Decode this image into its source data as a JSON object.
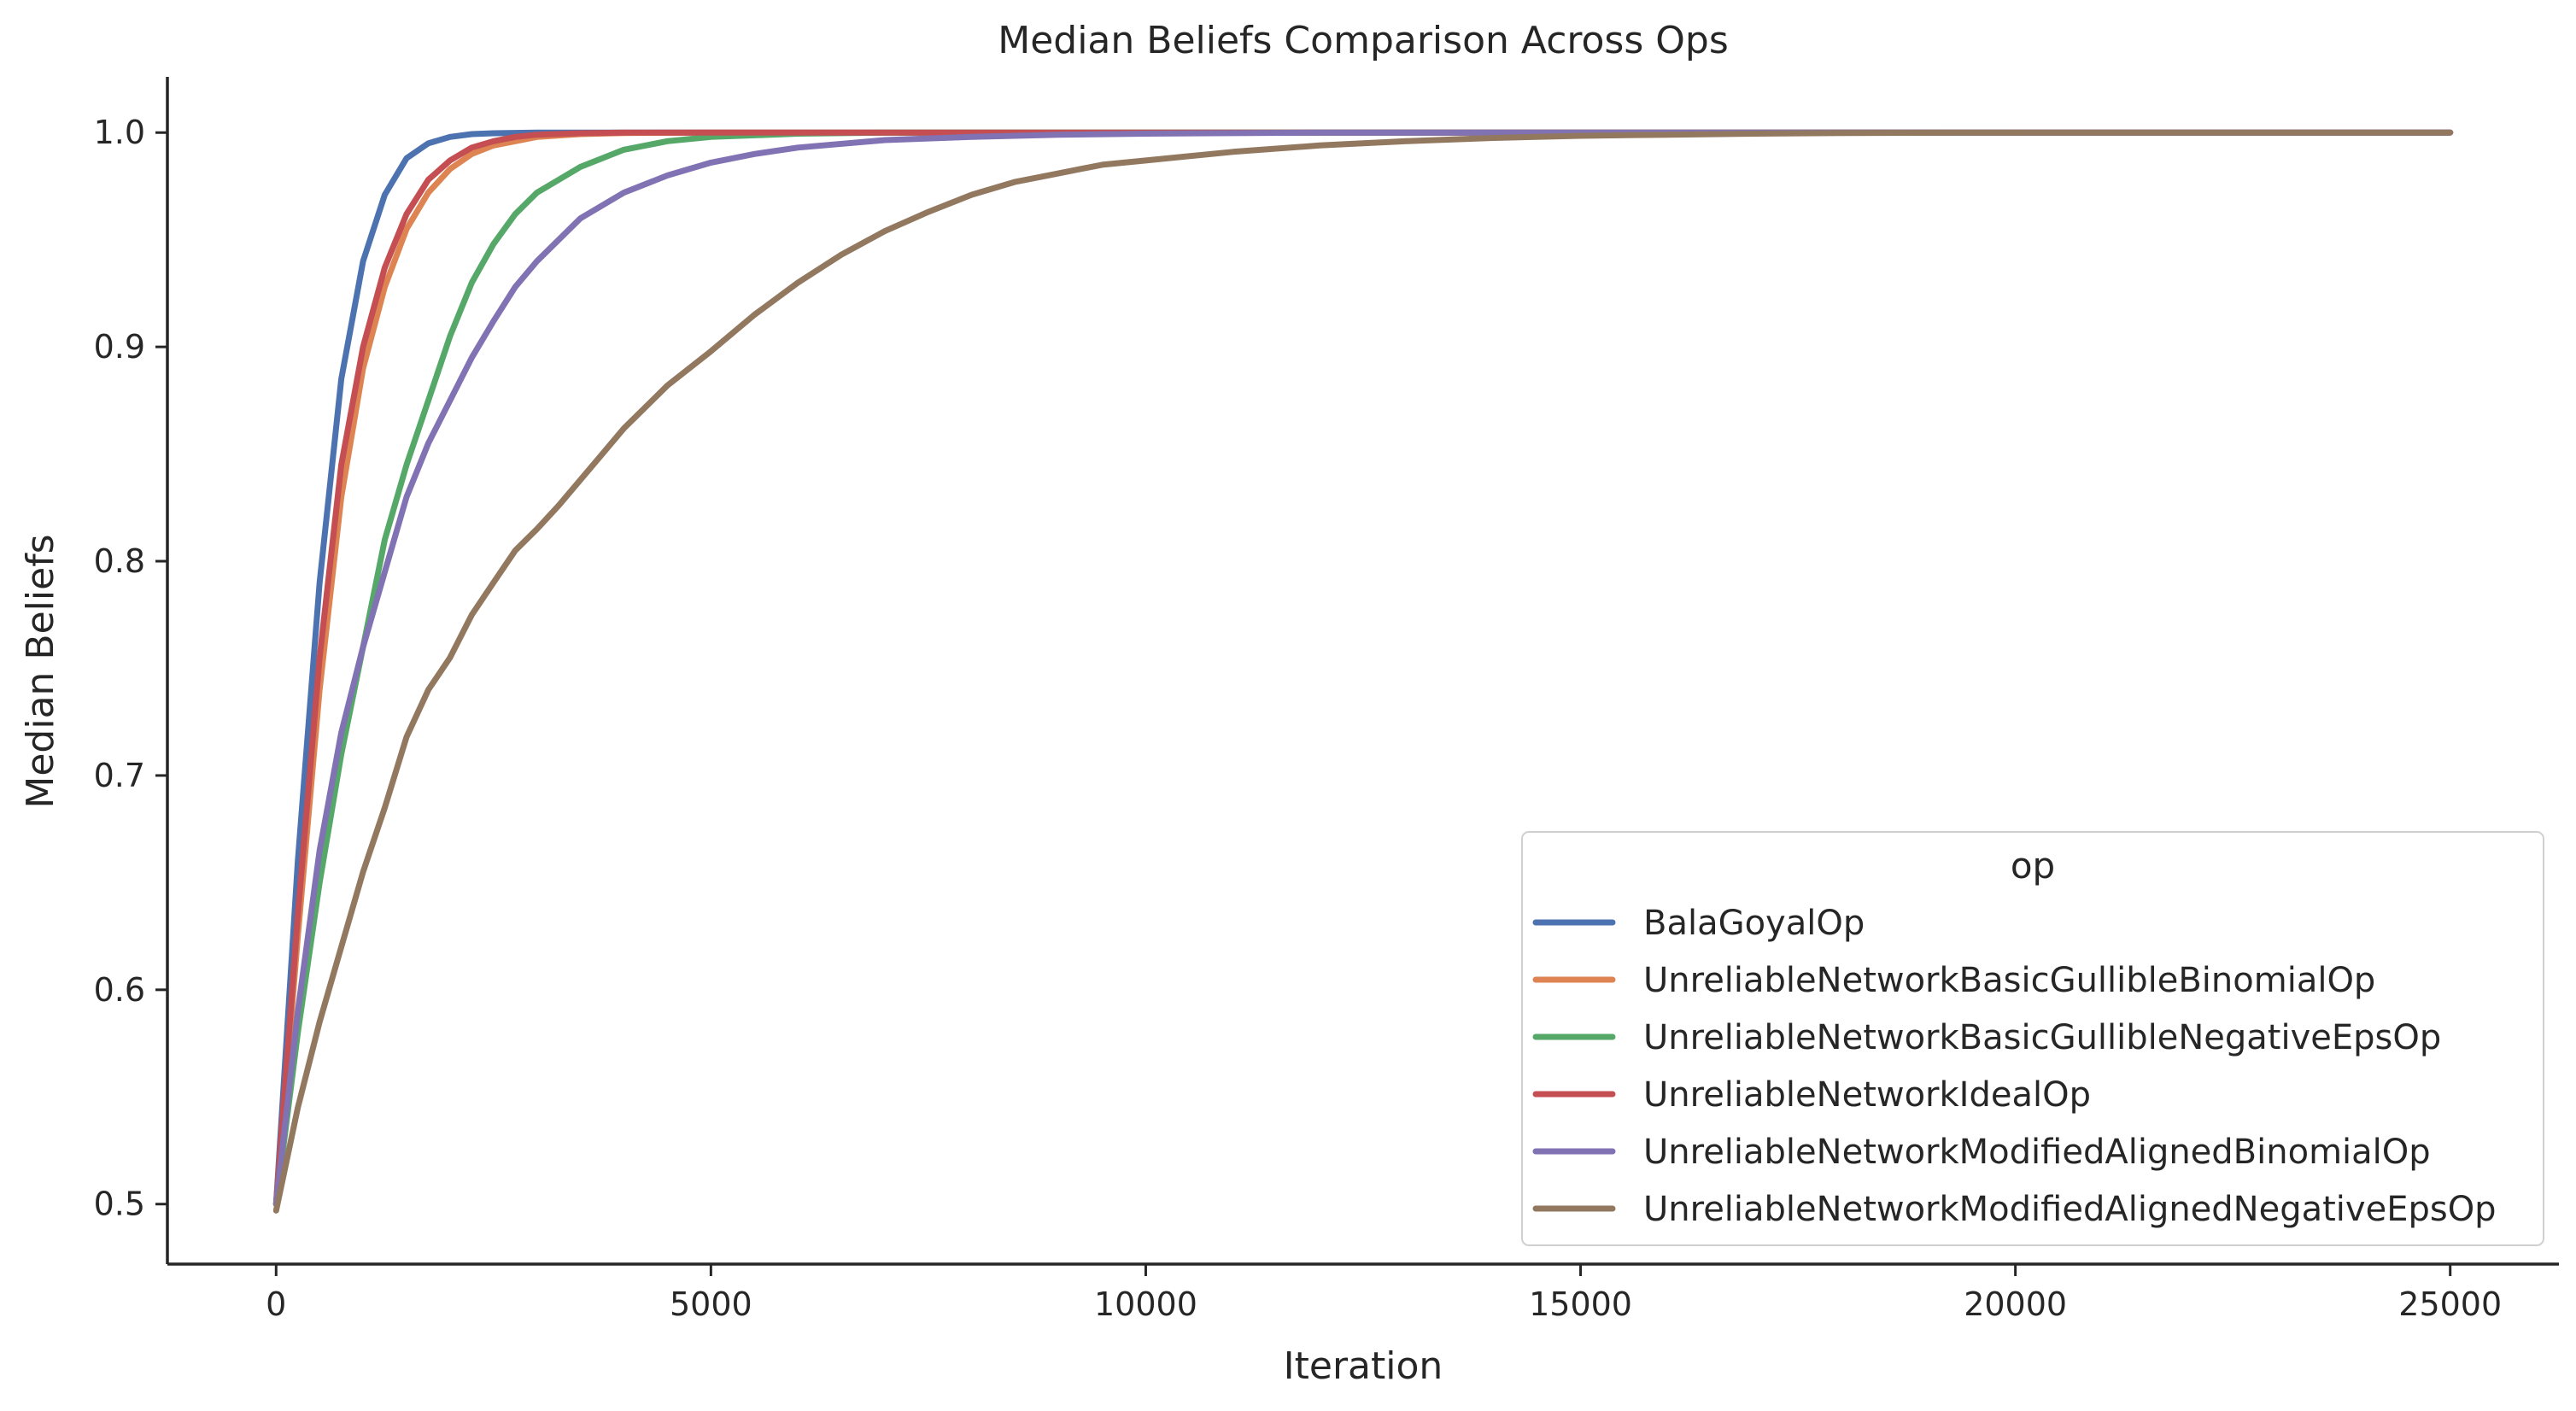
{
  "chart_data": {
    "type": "line",
    "title": "Median Beliefs Comparison Across Ops",
    "xlabel": "Iteration",
    "ylabel": "Median Beliefs",
    "xlim": [
      -1250,
      26250
    ],
    "ylim": [
      0.472,
      1.026
    ],
    "xticks": [
      0,
      5000,
      10000,
      15000,
      20000,
      25000
    ],
    "xtick_labels": [
      "0",
      "5000",
      "10000",
      "15000",
      "20000",
      "25000"
    ],
    "yticks": [
      0.5,
      0.6,
      0.7,
      0.8,
      0.9,
      1.0
    ],
    "ytick_labels": [
      "0.5",
      "0.6",
      "0.7",
      "0.8",
      "0.9",
      "1.0"
    ],
    "grid": false,
    "legend": {
      "title": "op",
      "placement": "lower-right"
    },
    "series": [
      {
        "name": "BalaGoyalOp",
        "color": "#4c72b0",
        "x": [
          0,
          250,
          500,
          750,
          1000,
          1250,
          1500,
          1750,
          2000,
          2250,
          2500,
          3000,
          4000,
          25000
        ],
        "y": [
          0.5,
          0.66,
          0.79,
          0.885,
          0.94,
          0.971,
          0.988,
          0.995,
          0.998,
          0.9993,
          0.9997,
          1.0,
          1.0,
          1.0
        ]
      },
      {
        "name": "UnreliableNetworkBasicGullibleBinomialOp",
        "color": "#dd8452",
        "x": [
          0,
          250,
          500,
          750,
          1000,
          1250,
          1500,
          1750,
          2000,
          2250,
          2500,
          2750,
          3000,
          3500,
          4000,
          5000,
          25000
        ],
        "y": [
          0.5,
          0.625,
          0.74,
          0.83,
          0.89,
          0.928,
          0.955,
          0.972,
          0.983,
          0.99,
          0.994,
          0.996,
          0.998,
          0.9993,
          0.9998,
          1.0,
          1.0
        ]
      },
      {
        "name": "UnreliableNetworkBasicGullibleNegativeEpsOp",
        "color": "#55a868",
        "x": [
          0,
          250,
          500,
          750,
          1000,
          1250,
          1500,
          1750,
          2000,
          2250,
          2500,
          2750,
          3000,
          3500,
          4000,
          4500,
          5000,
          6000,
          7000,
          25000
        ],
        "y": [
          0.5,
          0.58,
          0.65,
          0.71,
          0.76,
          0.81,
          0.845,
          0.875,
          0.905,
          0.93,
          0.948,
          0.962,
          0.972,
          0.984,
          0.992,
          0.996,
          0.998,
          0.9995,
          1.0,
          1.0
        ]
      },
      {
        "name": "UnreliableNetworkIdealOp",
        "color": "#c44e52",
        "x": [
          0,
          250,
          500,
          750,
          1000,
          1250,
          1500,
          1750,
          2000,
          2250,
          2500,
          2750,
          3000,
          3500,
          4000,
          5000,
          25000
        ],
        "y": [
          0.5,
          0.635,
          0.755,
          0.845,
          0.9,
          0.937,
          0.962,
          0.978,
          0.987,
          0.993,
          0.996,
          0.998,
          0.999,
          0.9997,
          1.0,
          1.0,
          1.0
        ]
      },
      {
        "name": "UnreliableNetworkModifiedAlignedBinomialOp",
        "color": "#8172b3",
        "x": [
          0,
          250,
          500,
          750,
          1000,
          1250,
          1500,
          1750,
          2000,
          2250,
          2500,
          2750,
          3000,
          3500,
          4000,
          4500,
          5000,
          5500,
          6000,
          7000,
          8000,
          9000,
          10000,
          12000,
          25000
        ],
        "y": [
          0.5,
          0.59,
          0.665,
          0.72,
          0.76,
          0.795,
          0.83,
          0.855,
          0.875,
          0.895,
          0.912,
          0.928,
          0.94,
          0.96,
          0.972,
          0.98,
          0.986,
          0.99,
          0.993,
          0.9965,
          0.998,
          0.999,
          0.9995,
          1.0,
          1.0
        ]
      },
      {
        "name": "UnreliableNetworkModifiedAlignedNegativeEpsOp",
        "color": "#937860",
        "x": [
          0,
          250,
          500,
          750,
          1000,
          1250,
          1500,
          1750,
          2000,
          2250,
          2500,
          2750,
          3000,
          3250,
          3500,
          3750,
          4000,
          4500,
          5000,
          5500,
          6000,
          6500,
          7000,
          7500,
          8000,
          8500,
          9000,
          9500,
          10000,
          11000,
          12000,
          13000,
          14000,
          15000,
          16000,
          17000,
          18000,
          20000,
          25000
        ],
        "y": [
          0.497,
          0.545,
          0.585,
          0.62,
          0.655,
          0.685,
          0.718,
          0.74,
          0.755,
          0.775,
          0.79,
          0.805,
          0.815,
          0.826,
          0.838,
          0.85,
          0.862,
          0.882,
          0.898,
          0.915,
          0.93,
          0.943,
          0.954,
          0.963,
          0.971,
          0.977,
          0.981,
          0.985,
          0.987,
          0.991,
          0.994,
          0.996,
          0.9975,
          0.9985,
          0.999,
          0.9995,
          0.9998,
          1.0,
          1.0
        ]
      }
    ]
  }
}
